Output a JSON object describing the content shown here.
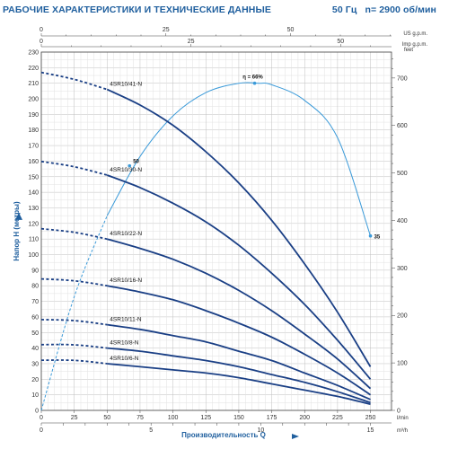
{
  "header": {
    "title": "РАБОЧИЕ ХАРАКТЕРИСТИКИ И ТЕХНИЧЕСКИЕ ДАННЫЕ",
    "frequency": "50 Гц",
    "speed": "n= 2900 об/мин"
  },
  "chart_data": {
    "type": "line",
    "title": "",
    "xlabel": "Производительность Q",
    "ylabel": "Напор H (метры)",
    "xlim": [
      0,
      266
    ],
    "ylim": [
      0,
      230
    ],
    "x_ticks": [
      0,
      25,
      50,
      75,
      100,
      125,
      150,
      175,
      200,
      225,
      250
    ],
    "x_unit": "l/min",
    "y_ticks": [
      0,
      10,
      20,
      30,
      40,
      50,
      60,
      70,
      80,
      90,
      100,
      110,
      120,
      130,
      140,
      150,
      160,
      170,
      180,
      190,
      200,
      210,
      220,
      230
    ],
    "secondary_x_bottom": {
      "ticks": [
        0,
        1,
        2,
        3,
        4,
        5,
        6,
        7,
        8,
        9,
        10,
        11,
        12,
        13,
        14,
        15
      ],
      "label_ticks": [
        0,
        5,
        10,
        15
      ],
      "unit": "m³/h"
    },
    "top_axis_us": {
      "ticks": [
        0,
        25,
        50
      ],
      "unit": "US g.p.m."
    },
    "top_axis_imp": {
      "ticks": [
        0,
        25,
        50
      ],
      "unit": "Imp g.p.m."
    },
    "right_axis": {
      "ticks": [
        0,
        100,
        200,
        300,
        400,
        500,
        600,
        700
      ],
      "unit": "feet"
    },
    "grid": true,
    "series": [
      {
        "name": "4SR10/41-N",
        "dashed_x": [
          0,
          50
        ],
        "x": [
          50,
          75,
          100,
          125,
          150,
          175,
          200,
          225,
          250
        ],
        "y": [
          206,
          196,
          183,
          166,
          146,
          122,
          94,
          63,
          28
        ]
      },
      {
        "name": "4SR10/30-N",
        "dashed_x": [
          0,
          50
        ],
        "x": [
          50,
          75,
          100,
          125,
          150,
          175,
          200,
          225,
          250
        ],
        "y": [
          151,
          143,
          133,
          121,
          106,
          88,
          68,
          45,
          20
        ]
      },
      {
        "name": "4SR10/22-N",
        "dashed_x": [
          0,
          50
        ],
        "x": [
          50,
          75,
          100,
          125,
          150,
          175,
          200,
          225,
          250
        ],
        "y": [
          110,
          104,
          97,
          88,
          77,
          64,
          49,
          33,
          14
        ]
      },
      {
        "name": "4SR10/16-N",
        "dashed_x": [
          0,
          50
        ],
        "x": [
          50,
          75,
          100,
          125,
          150,
          175,
          200,
          225,
          250
        ],
        "y": [
          80,
          76,
          71,
          64,
          56,
          47,
          36,
          24,
          10
        ]
      },
      {
        "name": "4SR10/11-N",
        "dashed_x": [
          0,
          50
        ],
        "x": [
          50,
          75,
          100,
          125,
          150,
          175,
          200,
          225,
          250
        ],
        "y": [
          55,
          52,
          48,
          44,
          38,
          32,
          24,
          16,
          7
        ]
      },
      {
        "name": "4SR10/8-N",
        "dashed_x": [
          0,
          50
        ],
        "x": [
          50,
          75,
          100,
          125,
          150,
          175,
          200,
          225,
          250
        ],
        "y": [
          40,
          38,
          35,
          32,
          28,
          23,
          18,
          12,
          5
        ]
      },
      {
        "name": "4SR10/6-N",
        "dashed_x": [
          0,
          50
        ],
        "x": [
          50,
          75,
          100,
          125,
          150,
          175,
          200,
          225,
          250
        ],
        "y": [
          30,
          28,
          26,
          24,
          21,
          17,
          13,
          9,
          4
        ]
      }
    ],
    "efficiency_curve": {
      "label": "η = 66%",
      "x": [
        0,
        25,
        50,
        75,
        100,
        125,
        150,
        165,
        175,
        200,
        225,
        250
      ],
      "y": [
        0,
        73,
        125,
        163,
        189,
        204,
        210,
        210,
        209,
        199,
        175,
        112
      ],
      "markers": [
        {
          "x": 67,
          "y": 157,
          "label": "50"
        },
        {
          "x": 162,
          "y": 210,
          "label": ""
        },
        {
          "x": 250,
          "y": 112,
          "label": "35"
        }
      ]
    }
  }
}
